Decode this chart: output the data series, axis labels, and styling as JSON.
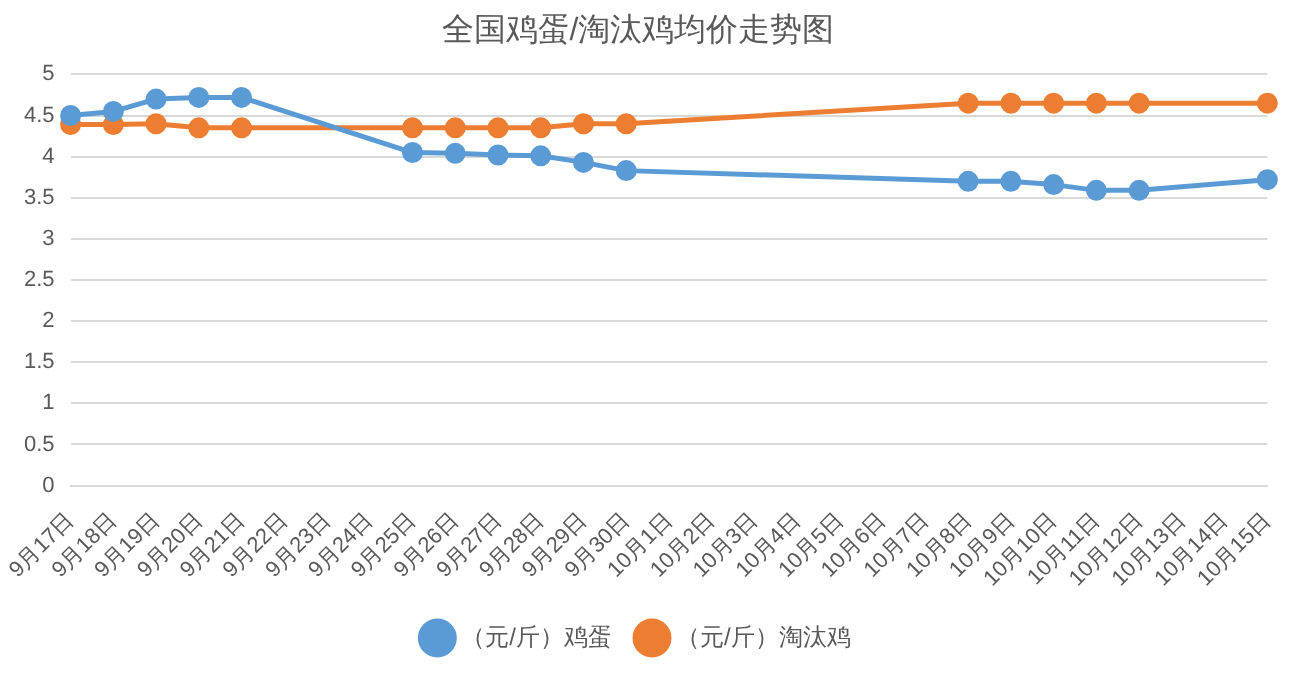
{
  "chart_data": {
    "type": "line",
    "title": "全国鸡蛋/淘汰鸡均价走势图",
    "categories": [
      "9月17日",
      "9月18日",
      "9月19日",
      "9月20日",
      "9月21日",
      "9月22日",
      "9月23日",
      "9月24日",
      "9月25日",
      "9月26日",
      "9月27日",
      "9月28日",
      "9月29日",
      "9月30日",
      "10月1日",
      "10月2日",
      "10月3日",
      "10月4日",
      "10月5日",
      "10月6日",
      "10月7日",
      "10月8日",
      "10月9日",
      "10月10日",
      "10月11日",
      "10月12日",
      "10月13日",
      "10月14日",
      "10月15日"
    ],
    "series": [
      {
        "name": "（元/斤）鸡蛋",
        "color": "#5b9bd5",
        "values": [
          4.5,
          4.55,
          4.7,
          4.72,
          4.72,
          null,
          null,
          null,
          4.05,
          4.04,
          4.02,
          4.01,
          3.93,
          3.83,
          null,
          null,
          null,
          null,
          null,
          null,
          null,
          3.7,
          3.7,
          3.66,
          3.59,
          3.59,
          null,
          null,
          3.72
        ]
      },
      {
        "name": "（元/斤）淘汰鸡",
        "color": "#ed7d31",
        "values": [
          4.39,
          4.39,
          4.4,
          4.35,
          4.35,
          null,
          null,
          null,
          4.35,
          4.35,
          4.35,
          4.35,
          4.4,
          4.4,
          null,
          null,
          null,
          null,
          null,
          null,
          null,
          4.65,
          4.65,
          4.65,
          4.65,
          4.65,
          null,
          null,
          4.65
        ]
      }
    ],
    "ylim": [
      0,
      5
    ],
    "yticks": [
      0,
      0.5,
      1,
      1.5,
      2,
      2.5,
      3,
      3.5,
      4,
      4.5,
      5
    ],
    "grid": "y",
    "legend": "bottom",
    "marker": "circle",
    "line_style": "solid"
  }
}
